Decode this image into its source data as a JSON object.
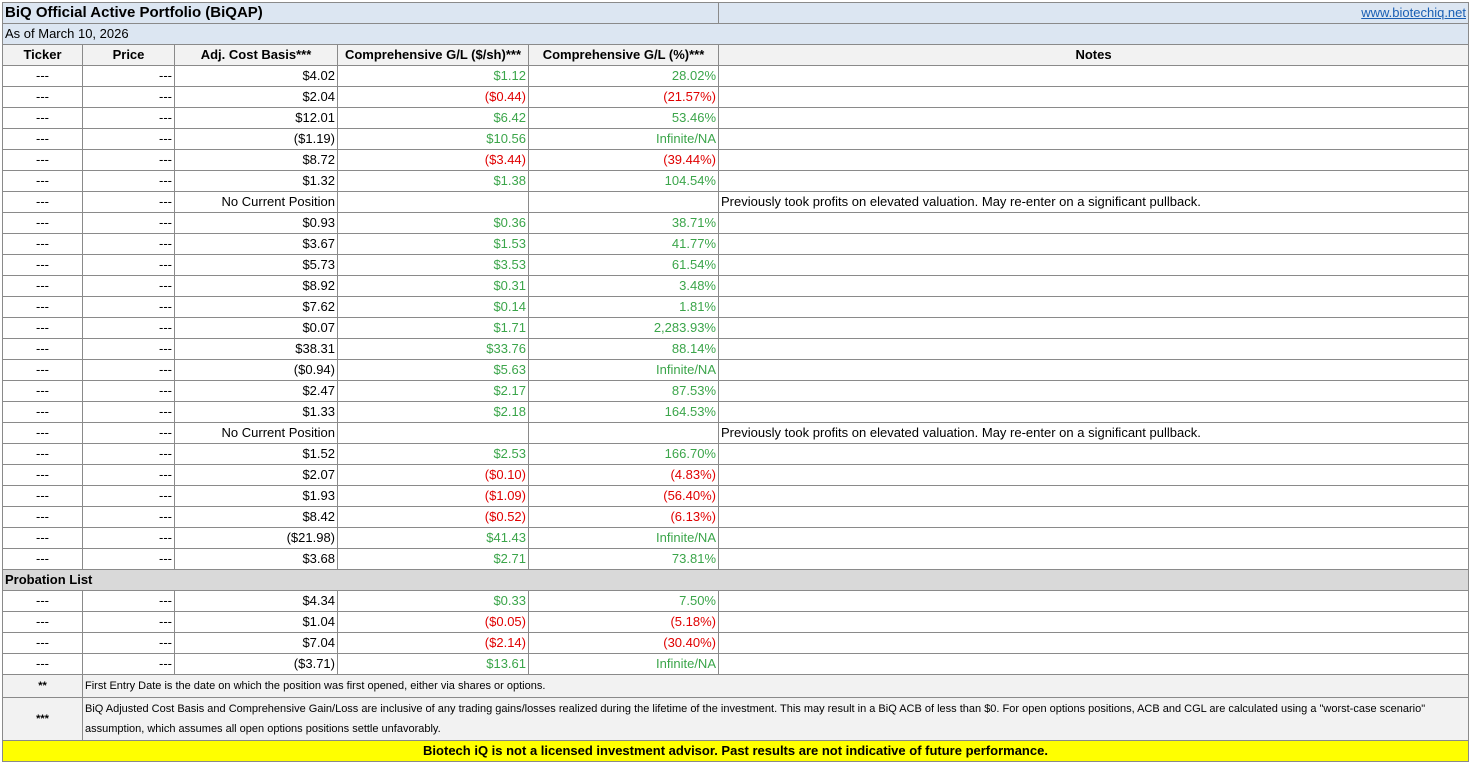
{
  "portfolio": {
    "title": "BiQ Official Active Portfolio (BiQAP)",
    "link": "www.biotechiq.net",
    "as_of": "As of March 10, 2026"
  },
  "columns": {
    "ticker": "Ticker",
    "price": "Price",
    "acb": "Adj. Cost Basis***",
    "gl_dollar": "Comprehensive G/L ($/sh)***",
    "gl_pct": "Comprehensive G/L (%)***",
    "notes": "Notes"
  },
  "colors": {
    "gain": "#3ba54a",
    "loss": "#e00000",
    "header_bg": "#dce6f2",
    "disclaimer_bg": "#ffff00"
  },
  "rows": [
    {
      "ticker": "---",
      "price": "---",
      "acb": "$4.02",
      "gl_dollar": "$1.12",
      "gl_pct": "28.02%",
      "notes": "",
      "trend": "pos"
    },
    {
      "ticker": "---",
      "price": "---",
      "acb": "$2.04",
      "gl_dollar": "($0.44)",
      "gl_pct": "(21.57%)",
      "notes": "",
      "trend": "neg"
    },
    {
      "ticker": "---",
      "price": "---",
      "acb": "$12.01",
      "gl_dollar": "$6.42",
      "gl_pct": "53.46%",
      "notes": "",
      "trend": "pos"
    },
    {
      "ticker": "---",
      "price": "---",
      "acb": "($1.19)",
      "gl_dollar": "$10.56",
      "gl_pct": "Infinite/NA",
      "notes": "",
      "trend": "pos"
    },
    {
      "ticker": "---",
      "price": "---",
      "acb": "$8.72",
      "gl_dollar": "($3.44)",
      "gl_pct": "(39.44%)",
      "notes": "",
      "trend": "neg"
    },
    {
      "ticker": "---",
      "price": "---",
      "acb": "$1.32",
      "gl_dollar": "$1.38",
      "gl_pct": "104.54%",
      "notes": "",
      "trend": "pos"
    },
    {
      "ticker": "---",
      "price": "---",
      "acb": "No Current Position",
      "gl_dollar": "",
      "gl_pct": "",
      "notes": "Previously took profits on elevated valuation. May re-enter on a significant pullback.",
      "trend": "pos"
    },
    {
      "ticker": "---",
      "price": "---",
      "acb": "$0.93",
      "gl_dollar": "$0.36",
      "gl_pct": "38.71%",
      "notes": "",
      "trend": "pos"
    },
    {
      "ticker": "---",
      "price": "---",
      "acb": "$3.67",
      "gl_dollar": "$1.53",
      "gl_pct": "41.77%",
      "notes": "",
      "trend": "pos"
    },
    {
      "ticker": "---",
      "price": "---",
      "acb": "$5.73",
      "gl_dollar": "$3.53",
      "gl_pct": "61.54%",
      "notes": "",
      "trend": "pos"
    },
    {
      "ticker": "---",
      "price": "---",
      "acb": "$8.92",
      "gl_dollar": "$0.31",
      "gl_pct": "3.48%",
      "notes": "",
      "trend": "pos"
    },
    {
      "ticker": "---",
      "price": "---",
      "acb": "$7.62",
      "gl_dollar": "$0.14",
      "gl_pct": "1.81%",
      "notes": "",
      "trend": "pos"
    },
    {
      "ticker": "---",
      "price": "---",
      "acb": "$0.07",
      "gl_dollar": "$1.71",
      "gl_pct": "2,283.93%",
      "notes": "",
      "trend": "pos"
    },
    {
      "ticker": "---",
      "price": "---",
      "acb": "$38.31",
      "gl_dollar": "$33.76",
      "gl_pct": "88.14%",
      "notes": "",
      "trend": "pos"
    },
    {
      "ticker": "---",
      "price": "---",
      "acb": "($0.94)",
      "gl_dollar": "$5.63",
      "gl_pct": "Infinite/NA",
      "notes": "",
      "trend": "pos"
    },
    {
      "ticker": "---",
      "price": "---",
      "acb": "$2.47",
      "gl_dollar": "$2.17",
      "gl_pct": "87.53%",
      "notes": "",
      "trend": "pos"
    },
    {
      "ticker": "---",
      "price": "---",
      "acb": "$1.33",
      "gl_dollar": "$2.18",
      "gl_pct": "164.53%",
      "notes": "",
      "trend": "pos"
    },
    {
      "ticker": "---",
      "price": "---",
      "acb": "No Current Position",
      "gl_dollar": "",
      "gl_pct": "",
      "notes": "Previously took profits on elevated valuation. May re-enter on a significant pullback.",
      "trend": "pos"
    },
    {
      "ticker": "---",
      "price": "---",
      "acb": "$1.52",
      "gl_dollar": "$2.53",
      "gl_pct": "166.70%",
      "notes": "",
      "trend": "pos"
    },
    {
      "ticker": "---",
      "price": "---",
      "acb": "$2.07",
      "gl_dollar": "($0.10)",
      "gl_pct": "(4.83%)",
      "notes": "",
      "trend": "neg"
    },
    {
      "ticker": "---",
      "price": "---",
      "acb": "$1.93",
      "gl_dollar": "($1.09)",
      "gl_pct": "(56.40%)",
      "notes": "",
      "trend": "neg"
    },
    {
      "ticker": "---",
      "price": "---",
      "acb": "$8.42",
      "gl_dollar": "($0.52)",
      "gl_pct": "(6.13%)",
      "notes": "",
      "trend": "neg"
    },
    {
      "ticker": "---",
      "price": "---",
      "acb": "($21.98)",
      "gl_dollar": "$41.43",
      "gl_pct": "Infinite/NA",
      "notes": "",
      "trend": "pos"
    },
    {
      "ticker": "---",
      "price": "---",
      "acb": "$3.68",
      "gl_dollar": "$2.71",
      "gl_pct": "73.81%",
      "notes": "",
      "trend": "pos"
    }
  ],
  "probation": {
    "label": "Probation List",
    "rows": [
      {
        "ticker": "---",
        "price": "---",
        "acb": "$4.34",
        "gl_dollar": "$0.33",
        "gl_pct": "7.50%",
        "notes": "",
        "trend": "pos"
      },
      {
        "ticker": "---",
        "price": "---",
        "acb": "$1.04",
        "gl_dollar": "($0.05)",
        "gl_pct": "(5.18%)",
        "notes": "",
        "trend": "neg"
      },
      {
        "ticker": "---",
        "price": "---",
        "acb": "$7.04",
        "gl_dollar": "($2.14)",
        "gl_pct": "(30.40%)",
        "notes": "",
        "trend": "neg"
      },
      {
        "ticker": "---",
        "price": "---",
        "acb": "($3.71)",
        "gl_dollar": "$13.61",
        "gl_pct": "Infinite/NA",
        "notes": "",
        "trend": "pos"
      }
    ]
  },
  "footnotes": [
    {
      "mark": "**",
      "text": "First Entry Date is the date on which the position was first opened, either via shares or options."
    },
    {
      "mark": "***",
      "text": "BiQ Adjusted Cost Basis and Comprehensive Gain/Loss are inclusive of any trading gains/losses realized during the lifetime of the investment. This may result in a BiQ ACB of less than $0. For open options positions, ACB and CGL are calculated using a \"worst-case scenario\" assumption, which assumes all open options positions settle unfavorably."
    }
  ],
  "disclaimer": "Biotech iQ is not a licensed investment advisor. Past results are not indicative of future performance."
}
